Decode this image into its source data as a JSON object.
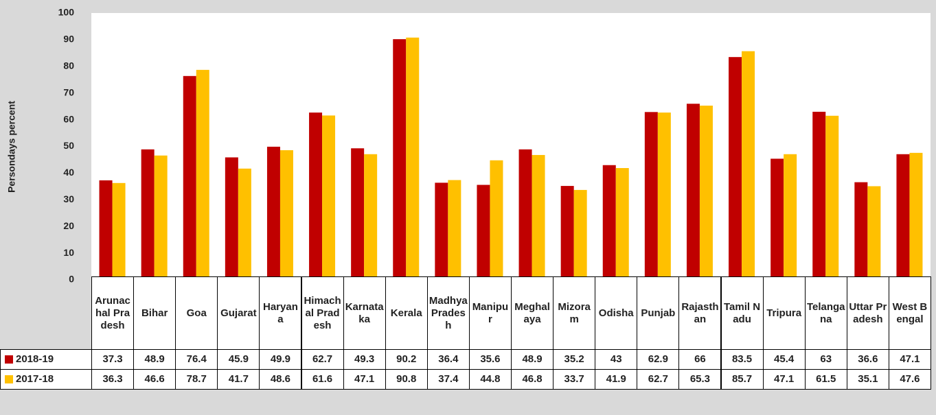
{
  "chart_data": {
    "type": "bar",
    "y_label": "Persondays percent",
    "categories": [
      "Arunachal Pradesh",
      "Bihar",
      "Goa",
      "Gujarat",
      "Haryana",
      "Himachal Pradesh",
      "Karnataka",
      "Kerala",
      "Madhya Pradesh",
      "Manipur",
      "Meghalaya",
      "Mizoram",
      "Odisha",
      "Punjab",
      "Rajasthan",
      "Tamil Nadu",
      "Tripura",
      "Telangana",
      "Uttar Pradesh",
      "West Bengal"
    ],
    "series": [
      {
        "name": "2018-19",
        "color": "#c00000",
        "values": [
          37.3,
          48.9,
          76.4,
          45.9,
          49.9,
          62.7,
          49.3,
          90.2,
          36.4,
          35.6,
          48.9,
          35.2,
          43,
          62.9,
          66,
          83.5,
          45.4,
          63,
          36.6,
          47.1
        ]
      },
      {
        "name": "2017-18",
        "color": "#ffc000",
        "values": [
          36.3,
          46.6,
          78.7,
          41.7,
          48.6,
          61.6,
          47.1,
          90.8,
          37.4,
          44.8,
          46.8,
          33.7,
          41.9,
          62.7,
          65.3,
          85.7,
          47.1,
          61.5,
          35.1,
          47.6
        ]
      }
    ],
    "ylim": [
      0,
      100
    ],
    "yticks": [
      0,
      10,
      20,
      30,
      40,
      50,
      60,
      70,
      80,
      90,
      100
    ],
    "grid": false
  }
}
